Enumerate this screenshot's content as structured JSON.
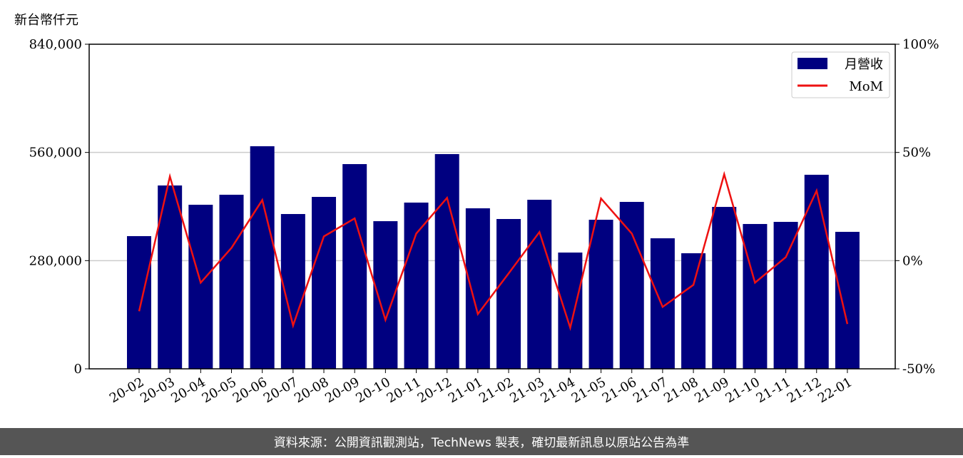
{
  "chart_data": {
    "type": "bar-line",
    "y_axis_label": "新台幣仟元",
    "categories": [
      "20-02",
      "20-03",
      "20-04",
      "20-05",
      "20-06",
      "20-07",
      "20-08",
      "20-09",
      "20-10",
      "20-11",
      "20-12",
      "21-01",
      "21-02",
      "21-03",
      "21-04",
      "21-05",
      "21-06",
      "21-07",
      "21-08",
      "21-09",
      "21-10",
      "21-11",
      "21-12",
      "22-01"
    ],
    "series": [
      {
        "name": "月營收",
        "type": "bar",
        "color": "#000080",
        "values": [
          343400,
          474500,
          424600,
          450500,
          576000,
          400600,
          444900,
          529800,
          382100,
          430200,
          555700,
          415400,
          387700,
          437500,
          300900,
          385800,
          432000,
          337800,
          299100,
          419000,
          374800,
          380300,
          502200,
          354500
        ]
      },
      {
        "name": "MoM",
        "type": "line",
        "axis": "y2",
        "color": "#ee1111",
        "values": [
          -23.4,
          38.9,
          -10.2,
          5.9,
          28.0,
          -30.0,
          11.2,
          19.5,
          -27.4,
          12.5,
          29.0,
          -24.7,
          -5.9,
          13.2,
          -31.0,
          28.7,
          12.5,
          -21.4,
          -11.2,
          39.9,
          -10.2,
          1.6,
          32.3,
          -29.3
        ]
      }
    ],
    "ylim": [
      0,
      840000
    ],
    "yticks": [
      {
        "value": 0,
        "label": "0"
      },
      {
        "value": 280000,
        "label": "280,000"
      },
      {
        "value": 560000,
        "label": "560,000"
      },
      {
        "value": 840000,
        "label": "840,000"
      }
    ],
    "y2lim": [
      -50,
      100
    ],
    "y2ticks": [
      {
        "value": -50,
        "label": "-50%"
      },
      {
        "value": 0,
        "label": "0%"
      },
      {
        "value": 50,
        "label": "50%"
      },
      {
        "value": 100,
        "label": "100%"
      }
    ],
    "grid": true,
    "legend": "upper right",
    "footer": "資料來源：公開資訊觀測站，TechNews 製表，確切最新訊息以原站公告為準"
  }
}
